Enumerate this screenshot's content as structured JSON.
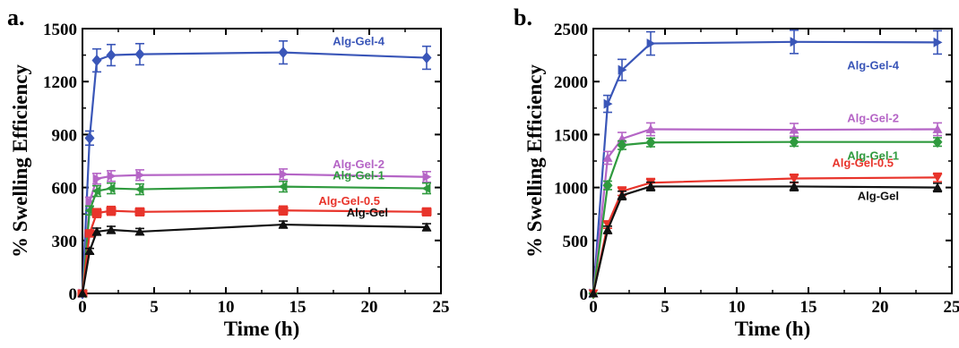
{
  "chart_data": [
    {
      "type": "line",
      "panel_label": "a.",
      "xlabel": "Time (h)",
      "ylabel": "% Swelling Efficiency",
      "xlim": [
        0,
        25
      ],
      "ylim": [
        0,
        1500
      ],
      "xticks": [
        0,
        5,
        10,
        15,
        20,
        25
      ],
      "yticks": [
        0,
        300,
        600,
        900,
        1200,
        1500
      ],
      "xtick_labels": [
        "0",
        "5",
        "10",
        "15",
        "20",
        "25"
      ],
      "ytick_labels": [
        "0",
        "300",
        "600",
        "900",
        "1200",
        "1500"
      ],
      "grid": false,
      "x": [
        0,
        0.5,
        1,
        2,
        4,
        14,
        24
      ],
      "series": [
        {
          "name": "Alg-Gel-4",
          "color": "#3a56b8",
          "marker": "diamond",
          "values": [
            0,
            880,
            1320,
            1350,
            1355,
            1365,
            1335
          ],
          "errors": [
            0,
            40,
            65,
            60,
            60,
            65,
            65
          ]
        },
        {
          "name": "Alg-Gel-2",
          "color": "#b565c6",
          "marker": "triangle-right",
          "values": [
            0,
            520,
            650,
            665,
            670,
            675,
            660
          ],
          "errors": [
            0,
            25,
            30,
            30,
            30,
            30,
            30
          ]
        },
        {
          "name": "Alg-Gel-1",
          "color": "#2f9a3e",
          "marker": "triangle-left",
          "values": [
            0,
            470,
            580,
            595,
            590,
            605,
            595
          ],
          "errors": [
            0,
            25,
            30,
            30,
            30,
            30,
            30
          ]
        },
        {
          "name": "Alg-Gel-0.5",
          "color": "#e8342b",
          "marker": "square",
          "values": [
            0,
            340,
            455,
            468,
            462,
            470,
            462
          ],
          "errors": [
            0,
            20,
            25,
            25,
            22,
            25,
            22
          ]
        },
        {
          "name": "Alg-Gel",
          "color": "#111111",
          "marker": "triangle-up",
          "values": [
            0,
            240,
            350,
            360,
            350,
            390,
            375
          ],
          "errors": [
            0,
            15,
            20,
            20,
            18,
            20,
            20
          ]
        }
      ]
    },
    {
      "type": "line",
      "panel_label": "b.",
      "xlabel": "Time (h)",
      "ylabel": "% Swelling Efficiency",
      "xlim": [
        0,
        25
      ],
      "ylim": [
        0,
        2500
      ],
      "xticks": [
        0,
        5,
        10,
        15,
        20,
        25
      ],
      "yticks": [
        0,
        500,
        1000,
        1500,
        2000,
        2500
      ],
      "xtick_labels": [
        "0",
        "5",
        "10",
        "15",
        "20",
        "25"
      ],
      "ytick_labels": [
        "0",
        "500",
        "1000",
        "1500",
        "2000",
        "2500"
      ],
      "grid": false,
      "x": [
        0,
        1,
        2,
        4,
        14,
        24
      ],
      "series": [
        {
          "name": "Alg-Gel-4",
          "color": "#3a56b8",
          "marker": "triangle-right",
          "values": [
            0,
            1790,
            2110,
            2360,
            2375,
            2370
          ],
          "errors": [
            0,
            80,
            100,
            110,
            110,
            110
          ]
        },
        {
          "name": "Alg-Gel-2",
          "color": "#b565c6",
          "marker": "triangle-up",
          "values": [
            0,
            1280,
            1460,
            1550,
            1545,
            1550
          ],
          "errors": [
            0,
            60,
            60,
            60,
            60,
            60
          ]
        },
        {
          "name": "Alg-Gel-1",
          "color": "#2f9a3e",
          "marker": "diamond",
          "values": [
            0,
            1020,
            1400,
            1425,
            1430,
            1430
          ],
          "errors": [
            0,
            40,
            40,
            40,
            40,
            40
          ]
        },
        {
          "name": "Alg-Gel-0.5",
          "color": "#e8342b",
          "marker": "triangle-down",
          "values": [
            0,
            650,
            965,
            1045,
            1085,
            1095
          ],
          "errors": [
            0,
            35,
            40,
            40,
            40,
            40
          ]
        },
        {
          "name": "Alg-Gel",
          "color": "#111111",
          "marker": "triangle-up",
          "values": [
            0,
            600,
            925,
            1010,
            1010,
            1000
          ],
          "errors": [
            0,
            35,
            40,
            40,
            40,
            40
          ]
        }
      ]
    }
  ]
}
